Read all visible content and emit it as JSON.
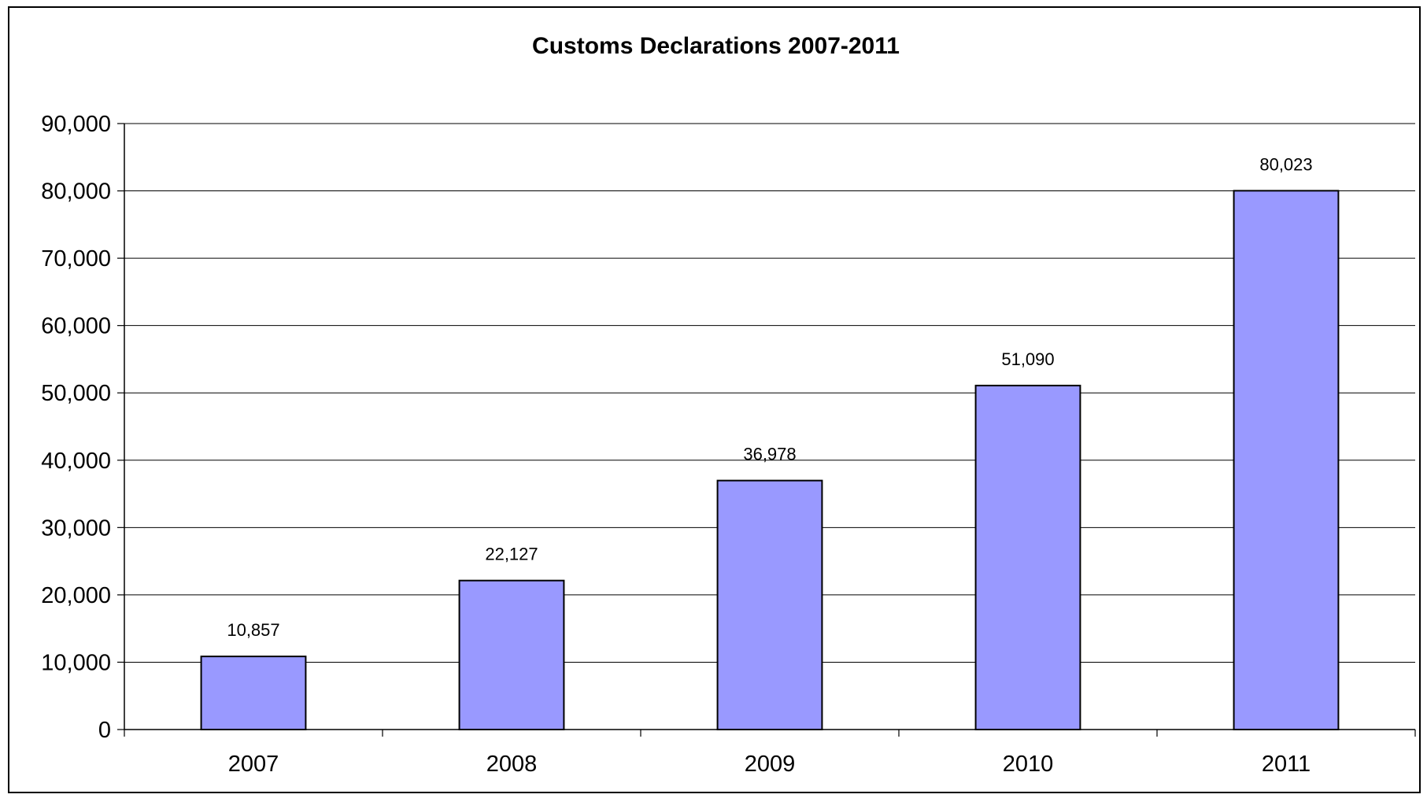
{
  "chart_data": {
    "type": "bar",
    "title": "Customs Declarations 2007-2011",
    "xlabel": "",
    "ylabel": "",
    "categories": [
      "2007",
      "2008",
      "2009",
      "2010",
      "2011"
    ],
    "values": [
      10857,
      22127,
      36978,
      51090,
      80023
    ],
    "value_labels": [
      "10,857",
      "22,127",
      "36,978",
      "51,090",
      "80,023"
    ],
    "ylim": [
      0,
      90000
    ],
    "y_ticks": [
      0,
      10000,
      20000,
      30000,
      40000,
      50000,
      60000,
      70000,
      80000,
      90000
    ],
    "y_tick_labels": [
      "0",
      "10,000",
      "20,000",
      "30,000",
      "40,000",
      "50,000",
      "60,000",
      "70,000",
      "80,000",
      "90,000"
    ],
    "grid": true,
    "legend": "none",
    "colors": {
      "bar_fill": "#9999FF",
      "bar_stroke": "#000000",
      "gridline": "#000000",
      "background": "#FFFFFF"
    }
  }
}
